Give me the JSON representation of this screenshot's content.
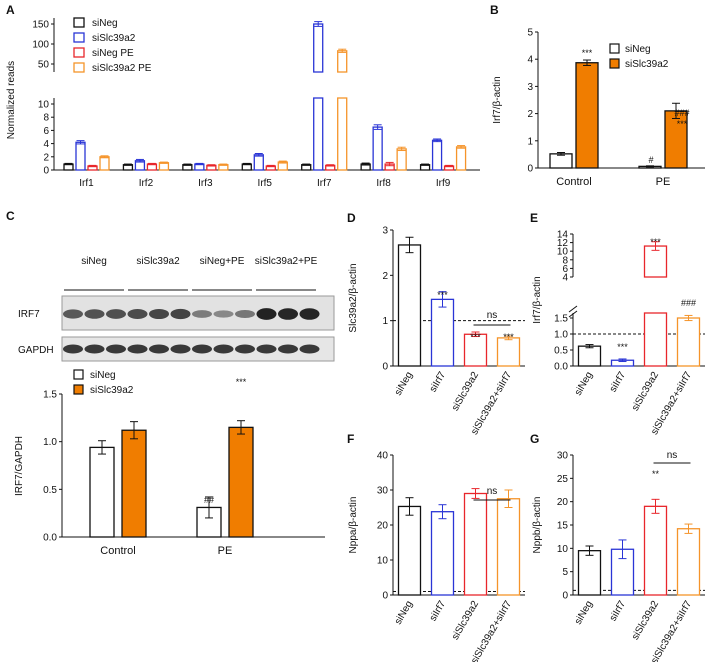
{
  "colors": {
    "siNeg": "#111111",
    "siSlc39a2": "#f07d00",
    "siIrf7": "#2a35d6",
    "siNegPE": "#e8262b",
    "siSlc39a2PE": "#f5942a"
  },
  "chart_data": [
    {
      "id": "A",
      "type": "bar",
      "ylabel": "Normalized reads",
      "categories": [
        "Irf1",
        "Irf2",
        "Irf3",
        "Irf5",
        "Irf7",
        "Irf8",
        "Irf9"
      ],
      "lower_ticks": [
        "0",
        "2",
        "4",
        "6",
        "8",
        "10"
      ],
      "upper_ticks": [
        "50",
        "100",
        "150"
      ],
      "series": [
        {
          "name": "siNeg",
          "values": [
            0.9,
            0.8,
            0.8,
            0.9,
            0.8,
            0.9,
            0.8
          ],
          "errors": [
            0.1,
            0.1,
            0.1,
            0.1,
            0.1,
            0.15,
            0.1
          ]
        },
        {
          "name": "siSlc39a2",
          "values": [
            4.2,
            1.4,
            0.9,
            2.3,
            150,
            6.5,
            4.5
          ],
          "errors": [
            0.25,
            0.2,
            0.1,
            0.2,
            6,
            0.35,
            0.2
          ]
        },
        {
          "name": "siNeg PE",
          "values": [
            0.6,
            0.9,
            0.7,
            0.6,
            0.7,
            0.9,
            0.6
          ],
          "errors": [
            0.1,
            0.1,
            0.1,
            0.1,
            0.1,
            0.25,
            0.1
          ]
        },
        {
          "name": "siSlc39a2 PE",
          "values": [
            2.0,
            1.1,
            0.8,
            1.2,
            83,
            3.2,
            3.5
          ],
          "errors": [
            0.15,
            0.1,
            0.1,
            0.15,
            4,
            0.25,
            0.2
          ]
        }
      ]
    },
    {
      "id": "B",
      "type": "bar",
      "ylabel": "Irf7/β-actin",
      "categories": [
        "Control",
        "PE"
      ],
      "ylim": [
        0,
        5
      ],
      "yticks": [
        "0",
        "1",
        "2",
        "3",
        "4",
        "5"
      ],
      "series": [
        {
          "name": "siNeg",
          "values": [
            0.52,
            0.06
          ],
          "errors": [
            0.05,
            0.02
          ]
        },
        {
          "name": "siSlc39a2",
          "values": [
            3.87,
            2.1
          ],
          "errors": [
            0.1,
            0.28
          ]
        }
      ],
      "annotations": [
        "***",
        "#",
        "###",
        "***"
      ]
    },
    {
      "id": "C",
      "type": "blot",
      "groups": [
        "siNeg",
        "siSlc39a2",
        "siNeg+PE",
        "siSlc39a2+PE"
      ],
      "rows": [
        "IRF7",
        "GAPDH"
      ]
    },
    {
      "id": "C2",
      "type": "bar",
      "ylabel": "IRF7/GAPDH",
      "categories": [
        "Control",
        "PE"
      ],
      "ylim": [
        0,
        1.5
      ],
      "yticks": [
        "0.0",
        "0.5",
        "1.0",
        "1.5"
      ],
      "series": [
        {
          "name": "siNeg",
          "values": [
            0.94,
            0.31
          ],
          "errors": [
            0.07,
            0.11
          ]
        },
        {
          "name": "siSlc39a2",
          "values": [
            1.12,
            1.15
          ],
          "errors": [
            0.09,
            0.07
          ]
        }
      ],
      "annotations": [
        "##",
        "***"
      ]
    },
    {
      "id": "D",
      "type": "bar",
      "ylabel": "Slc39a2/β-actin",
      "categories": [
        "siNeg",
        "siIrf7",
        "siSlc39a2",
        "siSlc39a2+siIrf7"
      ],
      "values": [
        2.67,
        1.47,
        0.7,
        0.62
      ],
      "errors": [
        0.17,
        0.17,
        0.05,
        0.04
      ],
      "ylim": [
        0,
        3
      ],
      "yticks": [
        "0",
        "1",
        "2",
        "3"
      ],
      "annotations": [
        "***",
        "***",
        "***",
        "ns"
      ]
    },
    {
      "id": "E",
      "type": "bar",
      "ylabel": "Irf7/β-actin",
      "categories": [
        "siNeg",
        "siIrf7",
        "siSlc39a2",
        "siSlc39a2+siIrf7"
      ],
      "values": [
        0.62,
        0.18,
        11.2,
        1.5
      ],
      "errors": [
        0.05,
        0.04,
        1.0,
        0.08
      ],
      "lower_ticks": [
        "0.0",
        "0.5",
        "1.0",
        "1.5"
      ],
      "upper_ticks": [
        "4",
        "6",
        "8",
        "10",
        "12",
        "14"
      ],
      "annotations": [
        "***",
        "***",
        "###"
      ]
    },
    {
      "id": "F",
      "type": "bar",
      "ylabel": "Nppa/β-actin",
      "categories": [
        "siNeg",
        "siIrf7",
        "siSlc39a2",
        "siSlc39a2+siIrf7"
      ],
      "values": [
        25.3,
        23.8,
        29.0,
        27.5
      ],
      "errors": [
        2.5,
        2.0,
        1.4,
        2.5
      ],
      "ylim": [
        0,
        40
      ],
      "yticks": [
        "0",
        "10",
        "20",
        "30",
        "40"
      ],
      "annotations": [
        "ns"
      ]
    },
    {
      "id": "G",
      "type": "bar",
      "ylabel": "Nppb/β-actin",
      "categories": [
        "siNeg",
        "siIrf7",
        "siSlc39a2",
        "siSlc39a2+siIrf7"
      ],
      "values": [
        9.5,
        9.8,
        19.0,
        14.2
      ],
      "errors": [
        1.0,
        2.0,
        1.5,
        1.0
      ],
      "ylim": [
        0,
        30
      ],
      "yticks": [
        "0",
        "5",
        "10",
        "15",
        "20",
        "25",
        "30"
      ],
      "annotations": [
        "**",
        "ns"
      ]
    }
  ]
}
